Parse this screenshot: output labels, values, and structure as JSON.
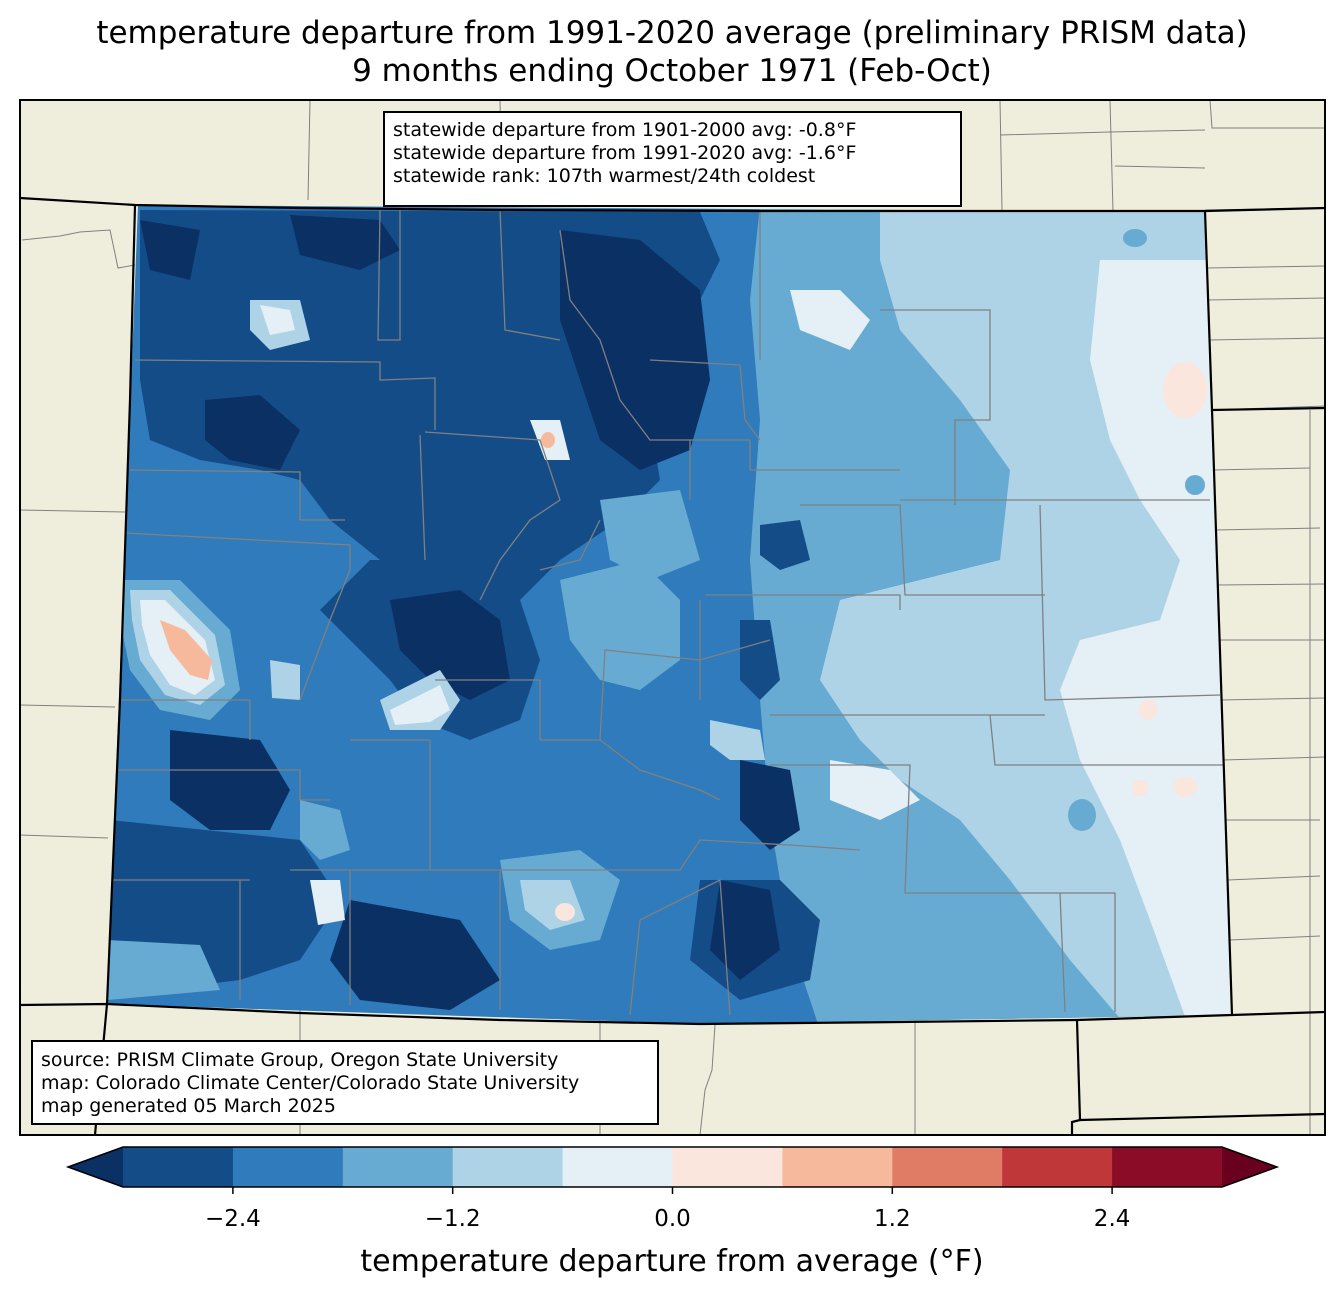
{
  "title": {
    "line1": "temperature departure from 1991-2020 average (preliminary PRISM data)",
    "line2": "9 months ending October 1971 (Feb-Oct)"
  },
  "stats": {
    "line1": "statewide departure from 1901-2000 avg: -0.8°F",
    "line2": "statewide departure from 1991-2020 avg: -1.6°F",
    "line3": "statewide rank: 107th warmest/24th coldest"
  },
  "source": {
    "line1": "source: PRISM Climate Group, Oregon State University",
    "line2": "map: Colorado Climate Center/Colorado State University",
    "line3": "map generated 05 March 2025"
  },
  "colorbar": {
    "label": "temperature departure from average (°F)",
    "levels": [
      -3.0,
      -2.4,
      -1.8,
      -1.2,
      -0.6,
      0.0,
      0.6,
      1.2,
      1.8,
      2.4,
      3.0
    ],
    "colors": [
      "#144c88",
      "#2f7bbb",
      "#67abd3",
      "#aed3e7",
      "#e5eff6",
      "#fae6dc",
      "#f7b99c",
      "#e07c65",
      "#c0373a",
      "#8a0c26"
    ],
    "under_color": "#0a3064",
    "over_color": "#6a0020",
    "ticks": [
      {
        "value": -2.4,
        "label": "−2.4"
      },
      {
        "value": -1.2,
        "label": "−1.2"
      },
      {
        "value": 0.0,
        "label": "0.0"
      },
      {
        "value": 1.2,
        "label": "1.2"
      },
      {
        "value": 2.4,
        "label": "2.4"
      }
    ]
  },
  "map_colors": {
    "land": "#efeedd",
    "state_border": "#000000",
    "county_border": "#808080",
    "very_cold": "#0a3064",
    "cold": "#144c88",
    "cool": "#2f7bbb",
    "mild_cool": "#67abd3",
    "slight_cool": "#aed3e7",
    "near_zero": "#e5eff6",
    "slight_warm": "#fae6dc",
    "warm": "#f7b99c"
  }
}
